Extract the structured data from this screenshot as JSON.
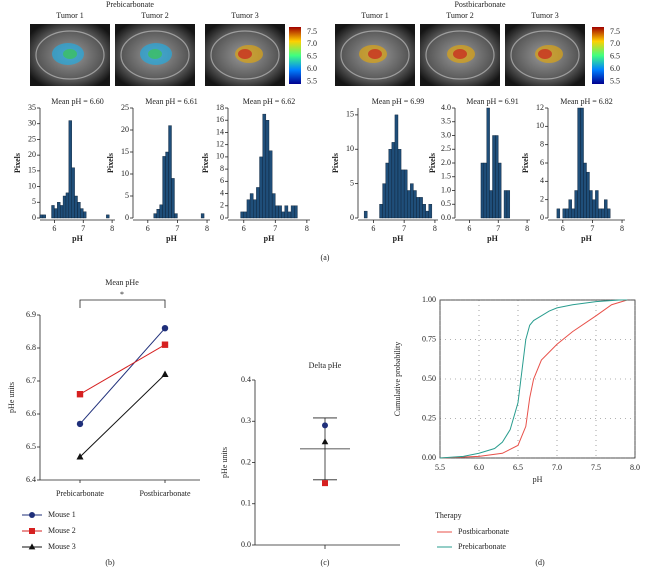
{
  "figure": {
    "group_labels": [
      "Prebicarbonate",
      "Postbicarbonate"
    ],
    "tumor_labels": [
      "Tumor 1",
      "Tumor 2",
      "Tumor 3",
      "Tumor 1",
      "Tumor 2",
      "Tumor 3"
    ],
    "colorbar": {
      "lim": [
        5.4,
        7.7
      ],
      "ticks": [
        7.5,
        {
          "value": 7,
          "label": "7.0"
        },
        6.5,
        {
          "value": 6,
          "label": "6.0"
        },
        5.5
      ]
    },
    "panel_labels": [
      "(a)",
      "(b)",
      "(c)",
      "(d)"
    ]
  },
  "chart_data": [
    {
      "type": "histogram",
      "title": "Mean pH = 6.60",
      "xlabel": "pH",
      "ylabel": "Pixels",
      "color": "#1f4e79",
      "bins": [
        5.5,
        5.6,
        5.7,
        5.8,
        5.9,
        6.0,
        6.1,
        6.2,
        6.3,
        6.4,
        6.5,
        6.6,
        6.7,
        6.8,
        6.9,
        7.0,
        7.1,
        7.2,
        7.3,
        7.4,
        7.5,
        7.6,
        7.7,
        7.8,
        7.9,
        8.0
      ],
      "values": [
        1,
        1,
        0,
        0,
        4,
        3,
        5,
        4,
        7,
        8,
        31,
        16,
        7,
        5,
        3,
        2,
        0,
        0,
        0,
        0,
        0,
        0,
        0,
        1,
        0
      ],
      "xlim": [
        5.5,
        8.1
      ],
      "xticks": [
        6,
        7,
        8
      ],
      "ylim": [
        0,
        35
      ],
      "yticks": [
        0,
        5,
        10,
        15,
        20,
        25,
        30,
        35
      ]
    },
    {
      "type": "histogram",
      "title": "Mean pH = 6.61",
      "xlabel": "pH",
      "ylabel": "Pixels",
      "color": "#1f4e79",
      "bins": [
        5.5,
        5.6,
        5.7,
        5.8,
        5.9,
        6.0,
        6.1,
        6.2,
        6.3,
        6.4,
        6.5,
        6.6,
        6.7,
        6.8,
        6.9,
        7.0,
        7.1,
        7.2,
        7.3,
        7.4,
        7.5,
        7.6,
        7.7,
        7.8,
        7.9,
        8.0
      ],
      "values": [
        0,
        0,
        0,
        0,
        0,
        0,
        0,
        1,
        2,
        3,
        14,
        15,
        21,
        9,
        1,
        0,
        0,
        0,
        0,
        0,
        0,
        0,
        0,
        1,
        0
      ],
      "xlim": [
        5.5,
        8.1
      ],
      "xticks": [
        6,
        7,
        8
      ],
      "ylim": [
        0,
        25
      ],
      "yticks": [
        0,
        5,
        10,
        15,
        20,
        25
      ]
    },
    {
      "type": "histogram",
      "title": "Mean pH = 6.62",
      "xlabel": "pH",
      "ylabel": "Pixels",
      "color": "#1f4e79",
      "bins": [
        5.5,
        5.6,
        5.7,
        5.8,
        5.9,
        6.0,
        6.1,
        6.2,
        6.3,
        6.4,
        6.5,
        6.6,
        6.7,
        6.8,
        6.9,
        7.0,
        7.1,
        7.2,
        7.3,
        7.4,
        7.5,
        7.6,
        7.7,
        7.8,
        7.9,
        8.0
      ],
      "values": [
        0,
        0,
        0,
        0,
        1,
        1,
        3,
        4,
        3,
        5,
        10,
        17,
        16,
        11,
        4,
        2,
        2,
        1,
        2,
        1,
        2,
        2,
        0,
        0,
        0
      ],
      "xlim": [
        5.5,
        8.1
      ],
      "xticks": [
        6,
        7,
        8
      ],
      "ylim": [
        0,
        18
      ],
      "yticks": [
        0,
        2,
        4,
        6,
        8,
        10,
        12,
        14,
        16,
        18
      ]
    },
    {
      "type": "histogram",
      "title": "Mean pH = 6.99",
      "xlabel": "pH",
      "ylabel": "Pixels",
      "color": "#1f4e79",
      "bins": [
        5.5,
        5.6,
        5.7,
        5.8,
        5.9,
        6.0,
        6.1,
        6.2,
        6.3,
        6.4,
        6.5,
        6.6,
        6.7,
        6.8,
        6.9,
        7.0,
        7.1,
        7.2,
        7.3,
        7.4,
        7.5,
        7.6,
        7.7,
        7.8,
        7.9,
        8.0
      ],
      "values": [
        0,
        0,
        1,
        0,
        0,
        0,
        0,
        2,
        5,
        8,
        10,
        11,
        15,
        10,
        7,
        7,
        4,
        5,
        4,
        3,
        3,
        2,
        1,
        2,
        0
      ],
      "xlim": [
        5.5,
        8.1
      ],
      "xticks": [
        6,
        7,
        8
      ],
      "ylim": [
        0,
        16
      ],
      "yticks": [
        0,
        5,
        10,
        15
      ]
    },
    {
      "type": "histogram",
      "title": "Mean pH = 6.91",
      "xlabel": "pH",
      "ylabel": "Pixels",
      "color": "#1f4e79",
      "bins": [
        5.5,
        5.6,
        5.7,
        5.8,
        5.9,
        6.0,
        6.1,
        6.2,
        6.3,
        6.4,
        6.5,
        6.6,
        6.7,
        6.8,
        6.9,
        7.0,
        7.1,
        7.2,
        7.3,
        7.4,
        7.5,
        7.6,
        7.7,
        7.8,
        7.9,
        8.0
      ],
      "values": [
        0,
        0,
        0,
        0,
        0,
        0,
        0,
        0,
        0,
        2,
        2,
        4,
        1,
        3,
        3,
        2,
        0,
        1,
        1,
        0,
        0,
        0,
        0,
        0,
        0
      ],
      "xlim": [
        5.5,
        8.1
      ],
      "xticks": [
        6,
        7,
        8
      ],
      "ylim": [
        0,
        4
      ],
      "yticks": [
        {
          "value": 0,
          "label": "0.0"
        },
        0.5,
        {
          "value": 1,
          "label": "1.0"
        },
        1.5,
        {
          "value": 2,
          "label": "2.0"
        },
        2.5,
        {
          "value": 3,
          "label": "3.0"
        },
        3.5,
        {
          "value": 4,
          "label": "4.0"
        }
      ]
    },
    {
      "type": "histogram",
      "title": "Mean pH = 6.82",
      "xlabel": "pH",
      "ylabel": "Pixels",
      "color": "#1f4e79",
      "bins": [
        5.5,
        5.6,
        5.7,
        5.8,
        5.9,
        6.0,
        6.1,
        6.2,
        6.3,
        6.4,
        6.5,
        6.6,
        6.7,
        6.8,
        6.9,
        7.0,
        7.1,
        7.2,
        7.3,
        7.4,
        7.5,
        7.6,
        7.7,
        7.8,
        7.9,
        8.0
      ],
      "values": [
        0,
        0,
        0,
        1,
        0,
        1,
        1,
        2,
        1,
        3,
        12,
        12,
        6,
        5,
        3,
        2,
        3,
        1,
        1,
        2,
        1,
        0,
        0,
        0,
        0
      ],
      "xlim": [
        5.5,
        8.1
      ],
      "xticks": [
        6,
        7,
        8
      ],
      "ylim": [
        0,
        12
      ],
      "yticks": [
        0,
        2,
        4,
        6,
        8,
        10,
        12
      ]
    },
    {
      "type": "line",
      "title": "Mean pHe",
      "ylabel": "pHe units",
      "annotation": "*",
      "categories": [
        "Prebicarbonate",
        "Postbicarbonate"
      ],
      "series": [
        {
          "name": "Mouse 1",
          "color": "#1f2f7a",
          "marker": "circle",
          "values": [
            6.57,
            6.86
          ]
        },
        {
          "name": "Mouse 2",
          "color": "#d62020",
          "marker": "square",
          "values": [
            6.66,
            6.81
          ]
        },
        {
          "name": "Mouse 3",
          "color": "#111111",
          "marker": "triangle",
          "values": [
            6.47,
            6.72
          ]
        }
      ],
      "ylim": [
        6.4,
        6.9
      ],
      "yticks": [
        6.4,
        6.5,
        6.6,
        6.7,
        6.8,
        6.9
      ]
    },
    {
      "type": "dot",
      "title": "Delta pHe",
      "ylabel": "pHe units",
      "values": [
        0.29,
        0.25,
        0.15
      ],
      "colors": [
        "#1f2f7a",
        "#111111",
        "#d62020"
      ],
      "markers": [
        "circle",
        "triangle",
        "square"
      ],
      "mean": 0.233,
      "error": 0.075,
      "ylim": [
        0,
        0.4
      ],
      "yticks": [
        {
          "value": 0,
          "label": "0.0"
        },
        0.1,
        0.2,
        0.3,
        0.4
      ]
    },
    {
      "type": "cdf",
      "xlabel": "pH",
      "ylabel": "Cumulative probability",
      "legend_title": "Therapy",
      "grid": true,
      "series": [
        {
          "name": "Postbicarbonate",
          "color": "#e8514a",
          "x": [
            5.5,
            6.0,
            6.3,
            6.5,
            6.6,
            6.65,
            6.7,
            6.8,
            7.0,
            7.2,
            7.5,
            7.7,
            7.9
          ],
          "values": [
            0,
            0.01,
            0.03,
            0.08,
            0.2,
            0.38,
            0.5,
            0.62,
            0.72,
            0.8,
            0.9,
            0.97,
            1.0
          ]
        },
        {
          "name": "Prebicarbonate",
          "color": "#2a9d8f",
          "x": [
            5.5,
            5.8,
            6.0,
            6.2,
            6.3,
            6.4,
            6.5,
            6.55,
            6.6,
            6.65,
            6.7,
            6.8,
            6.9,
            7.0,
            7.2,
            7.5,
            7.8,
            7.9
          ],
          "values": [
            0,
            0.01,
            0.03,
            0.06,
            0.1,
            0.18,
            0.35,
            0.55,
            0.75,
            0.84,
            0.87,
            0.9,
            0.93,
            0.95,
            0.97,
            0.99,
            1.0,
            1.0
          ]
        }
      ],
      "xlim": [
        5.5,
        8.0
      ],
      "xticks": [
        5.5,
        {
          "value": 6,
          "label": "6.0"
        },
        6.5,
        {
          "value": 7,
          "label": "7.0"
        },
        7.5,
        {
          "value": 8,
          "label": "8.0"
        }
      ],
      "ylim": [
        0,
        1
      ],
      "yticks": [
        {
          "value": 0,
          "label": "0.00"
        },
        {
          "value": 0.25,
          "label": "0.25"
        },
        {
          "value": 0.5,
          "label": "0.50"
        },
        {
          "value": 0.75,
          "label": "0.75"
        },
        {
          "value": 1,
          "label": "1.00"
        }
      ]
    }
  ]
}
